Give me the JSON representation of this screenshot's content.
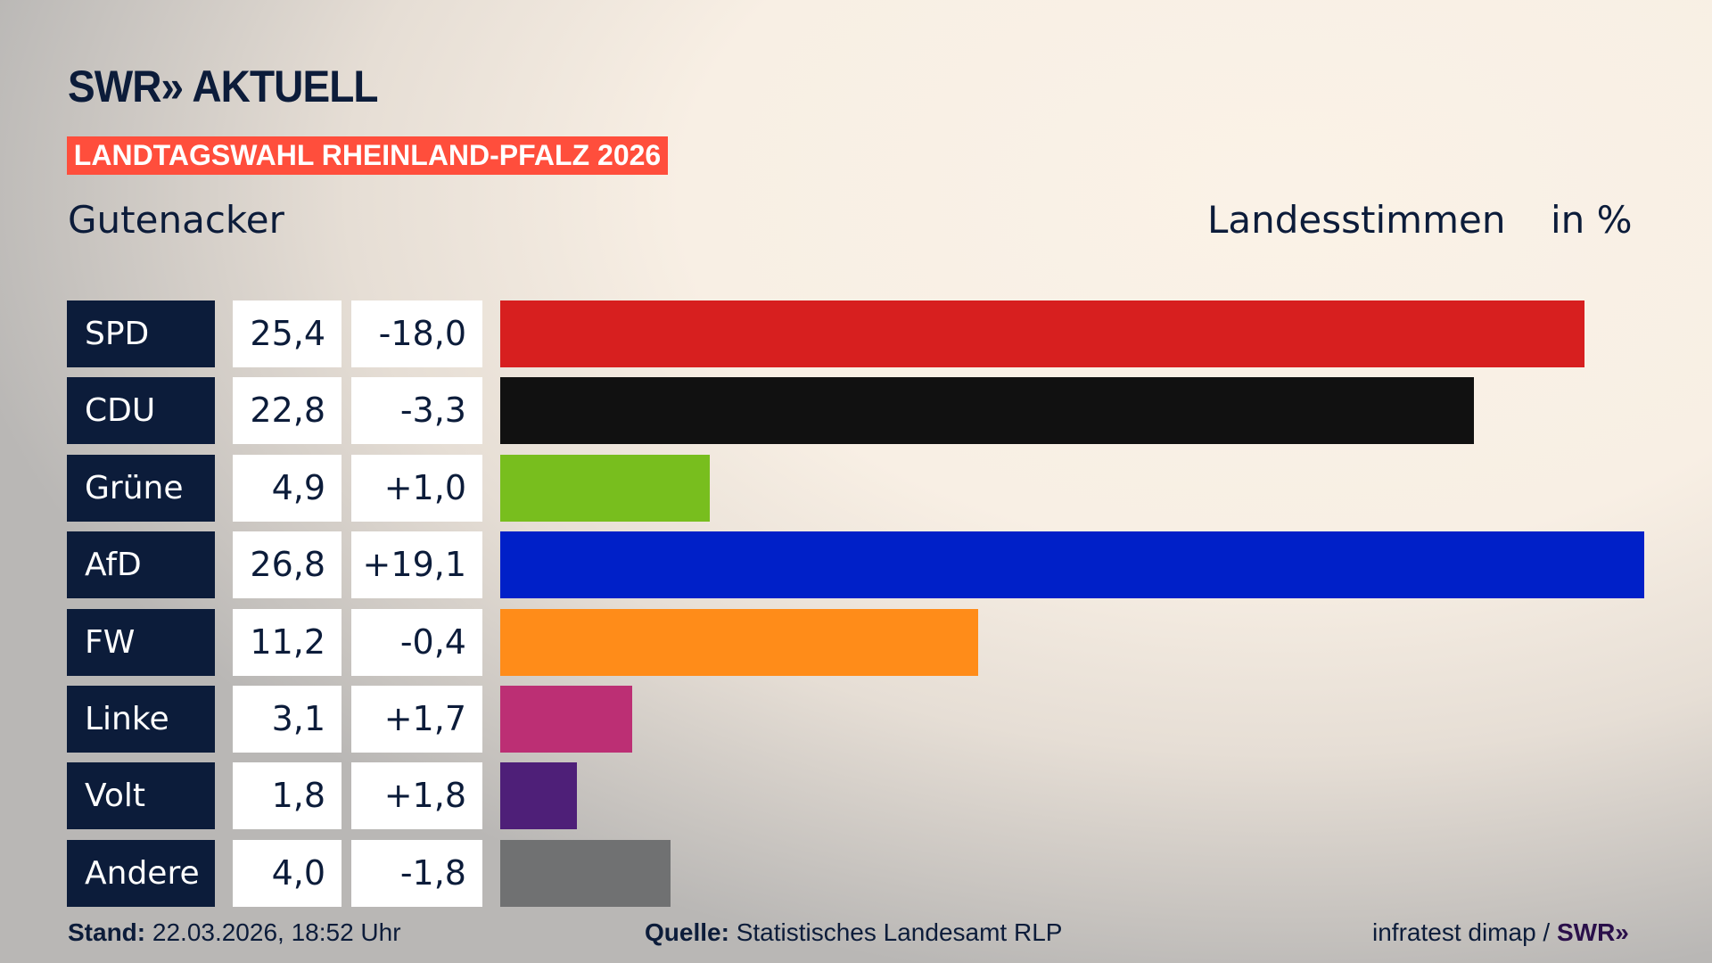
{
  "header": {
    "logo": "SWR» AKTUELL",
    "banner": "LANDTAGSWAHL RHEINLAND-PFALZ 2026",
    "place": "Gutenacker",
    "metric": "Landesstimmen",
    "unit": "in %"
  },
  "chart_data": {
    "type": "bar",
    "orientation": "horizontal",
    "categories": [
      "SPD",
      "CDU",
      "Grüne",
      "AfD",
      "FW",
      "Linke",
      "Volt",
      "Andere"
    ],
    "values": [
      25.4,
      22.8,
      4.9,
      26.8,
      11.2,
      3.1,
      1.8,
      4.0
    ],
    "value_labels": [
      "25,4",
      "22,8",
      "4,9",
      "26,8",
      "11,2",
      "3,1",
      "1,8",
      "4,0"
    ],
    "diff_labels": [
      "-18,0",
      "-3,3",
      "+1,0",
      "+19,1",
      "-0,4",
      "+1,7",
      "+1,8",
      "-1,8"
    ],
    "colors": [
      "#d71f1f",
      "#111111",
      "#78be1e",
      "#0020c8",
      "#ff8c19",
      "#bc2f74",
      "#4e1f78",
      "#707172"
    ],
    "xlim": [
      0,
      26.8
    ]
  },
  "footer": {
    "stand_label": "Stand:",
    "stand_value": "22.03.2026, 18:52 Uhr",
    "source_label": "Quelle:",
    "source_value": "Statistisches Landesamt RLP",
    "credit": "infratest dimap / ",
    "credit_logo": "SWR»"
  }
}
